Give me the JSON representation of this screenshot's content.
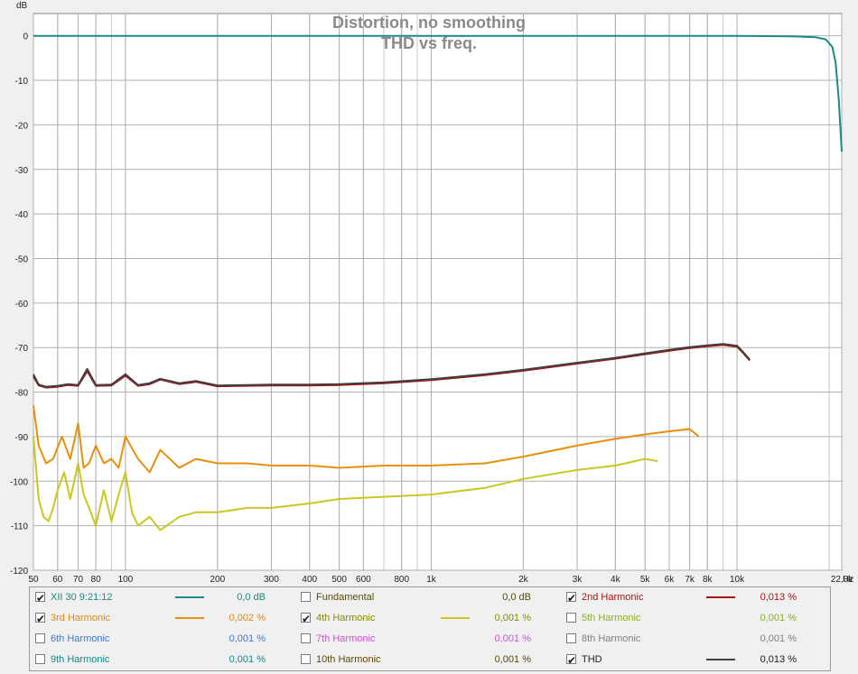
{
  "chart_data": {
    "type": "line",
    "title": "Distortion, no smoothing",
    "subtitle": "THD vs freq.",
    "ylabel": "dB",
    "xlabel": "",
    "x_unit": "Hz",
    "x_scale": "log",
    "xlim": [
      50,
      22000
    ],
    "ylim": [
      -120,
      5
    ],
    "grid": true,
    "x_ticks": [
      50,
      60,
      70,
      80,
      100,
      200,
      300,
      400,
      500,
      600,
      800,
      1000,
      2000,
      3000,
      4000,
      5000,
      6000,
      7000,
      8000,
      10000,
      22000
    ],
    "x_tick_labels": [
      "50",
      "60",
      "70",
      "80",
      "100",
      "200",
      "300",
      "400",
      "500",
      "600",
      "800",
      "1k",
      "2k",
      "3k",
      "4k",
      "5k",
      "6k",
      "7k",
      "8k",
      "10k",
      "22,0k"
    ],
    "y_ticks": [
      0,
      -10,
      -20,
      -30,
      -40,
      -50,
      -60,
      -70,
      -80,
      -90,
      -100,
      -110,
      -120
    ],
    "y_tick_labels": [
      "0",
      "-10",
      "-20",
      "-30",
      "-40",
      "-50",
      "-60",
      "-70",
      "-80",
      "-90",
      "-100",
      "-110",
      "-120"
    ],
    "series": [
      {
        "name": "XII 30 9:21:12",
        "color": "#1a8a8a",
        "x": [
          50,
          100,
          500,
          1000,
          5000,
          10000,
          15000,
          18000,
          19500,
          20500,
          21000,
          21500,
          22000
        ],
        "y": [
          0,
          0,
          0,
          0,
          0,
          0,
          -0.1,
          -0.3,
          -0.8,
          -2.5,
          -6,
          -14,
          -26
        ]
      },
      {
        "name": "2nd Harmonic",
        "color": "#b01010",
        "x": [
          50,
          52,
          55,
          60,
          65,
          70,
          75,
          80,
          90,
          100,
          110,
          120,
          130,
          150,
          170,
          200,
          250,
          300,
          400,
          500,
          700,
          1000,
          1500,
          2000,
          3000,
          4000,
          5000,
          6000,
          7000,
          8000,
          9000,
          10000,
          10500,
          11000
        ],
        "y": [
          -76.5,
          -78.5,
          -79,
          -78.8,
          -78.4,
          -78.6,
          -75.3,
          -78.6,
          -78.5,
          -76.3,
          -78.6,
          -78.2,
          -77.2,
          -78.2,
          -77.7,
          -78.7,
          -78.6,
          -78.5,
          -78.5,
          -78.4,
          -78,
          -77.3,
          -76.2,
          -75.2,
          -73.6,
          -72.5,
          -71.5,
          -70.7,
          -70.1,
          -69.7,
          -69.4,
          -69.8,
          -71.3,
          -72.9
        ]
      },
      {
        "name": "3rd Harmonic",
        "color": "#e8900a",
        "x": [
          50,
          52,
          55,
          58,
          62,
          66,
          70,
          73,
          76,
          80,
          85,
          90,
          95,
          100,
          110,
          120,
          130,
          150,
          170,
          200,
          250,
          300,
          400,
          500,
          700,
          1000,
          1500,
          2000,
          3000,
          4000,
          5000,
          6000,
          7000,
          7500
        ],
        "y": [
          -83,
          -92,
          -96,
          -95,
          -90,
          -95,
          -87,
          -97,
          -96,
          -92,
          -96,
          -95,
          -97,
          -90,
          -95,
          -98,
          -93,
          -97,
          -95,
          -96,
          -96,
          -96.5,
          -96.5,
          -97,
          -96.5,
          -96.5,
          -96,
          -94.5,
          -92,
          -90.5,
          -89.5,
          -88.8,
          -88.3,
          -90
        ]
      },
      {
        "name": "4th Harmonic",
        "color": "#c8c820",
        "x": [
          50,
          52,
          54,
          56,
          58,
          60,
          63,
          66,
          70,
          73,
          76,
          80,
          85,
          90,
          95,
          100,
          105,
          110,
          120,
          130,
          150,
          170,
          200,
          250,
          300,
          400,
          500,
          700,
          1000,
          1500,
          2000,
          3000,
          4000,
          5000,
          5500
        ],
        "y": [
          -90,
          -104,
          -108,
          -109,
          -106,
          -102,
          -98,
          -104,
          -96,
          -103,
          -106,
          -110,
          -102,
          -109,
          -103,
          -98,
          -107,
          -110,
          -108,
          -111,
          -108,
          -107,
          -107,
          -106,
          -106,
          -105,
          -104,
          -103.5,
          -103,
          -101.5,
          -99.5,
          -97.5,
          -96.5,
          -95,
          -95.5
        ]
      },
      {
        "name": "THD",
        "color": "#404040",
        "x": [
          50,
          52,
          55,
          60,
          65,
          70,
          75,
          80,
          90,
          100,
          110,
          120,
          130,
          150,
          170,
          200,
          250,
          300,
          400,
          500,
          700,
          1000,
          1500,
          2000,
          3000,
          4000,
          5000,
          6000,
          7000,
          8000,
          9000,
          10000,
          10500,
          11000
        ],
        "y": [
          -76,
          -78.3,
          -78.8,
          -78.6,
          -78.2,
          -78.4,
          -74.8,
          -78.4,
          -78.3,
          -76,
          -78.4,
          -78,
          -77,
          -78,
          -77.5,
          -78.5,
          -78.4,
          -78.3,
          -78.3,
          -78.2,
          -77.8,
          -77.1,
          -76,
          -75,
          -73.4,
          -72.3,
          -71.3,
          -70.5,
          -69.9,
          -69.5,
          -69.2,
          -69.6,
          -71.1,
          -72.7
        ]
      }
    ]
  },
  "legend": {
    "rows": [
      [
        {
          "label": "XII 30 9:21:12",
          "checked": true,
          "value": "0,0 dB",
          "color": "#1a8a8a",
          "label_color": "#1a8a8a",
          "value_color": "#1a8a8a",
          "swatch": true
        },
        {
          "label": "Fundamental",
          "checked": false,
          "value": "0,0 dB",
          "color": "#6a5a00",
          "label_color": "#5a4a00",
          "value_color": "#5a4a00",
          "swatch": false
        },
        {
          "label": "2nd Harmonic",
          "checked": true,
          "value": "0,013 %",
          "color": "#b01010",
          "label_color": "#b01010",
          "value_color": "#b01010",
          "swatch": true
        }
      ],
      [
        {
          "label": "3rd Harmonic",
          "checked": true,
          "value": "0,002 %",
          "color": "#e8900a",
          "label_color": "#e08a10",
          "value_color": "#e08a10",
          "swatch": true
        },
        {
          "label": "4th Harmonic",
          "checked": true,
          "value": "0,001 %",
          "color": "#c8c820",
          "label_color": "#8a8a00",
          "value_color": "#8a8a00",
          "swatch": true
        },
        {
          "label": "5th Harmonic",
          "checked": false,
          "value": "0,001 %",
          "color": "#8ab020",
          "label_color": "#8ab020",
          "value_color": "#8ab020",
          "swatch": false
        }
      ],
      [
        {
          "label": "6th Harmonic",
          "checked": false,
          "value": "0,001 %",
          "color": "#3a7ad0",
          "label_color": "#3a7ad0",
          "value_color": "#3a7ad0",
          "swatch": false
        },
        {
          "label": "7th Harmonic",
          "checked": false,
          "value": "0,001 %",
          "color": "#d050d0",
          "label_color": "#d050d0",
          "value_color": "#d050d0",
          "swatch": false
        },
        {
          "label": "8th Harmonic",
          "checked": false,
          "value": "0,001 %",
          "color": "#909090",
          "label_color": "#808080",
          "value_color": "#808080",
          "swatch": false
        }
      ],
      [
        {
          "label": "9th Harmonic",
          "checked": false,
          "value": "0,001 %",
          "color": "#109090",
          "label_color": "#108888",
          "value_color": "#108888",
          "swatch": false
        },
        {
          "label": "10th Harmonic",
          "checked": false,
          "value": "0,001 %",
          "color": "#6a5a00",
          "label_color": "#5a4a00",
          "value_color": "#5a4a00",
          "swatch": false
        },
        {
          "label": "THD",
          "checked": true,
          "value": "0,013 %",
          "color": "#404040",
          "label_color": "#202020",
          "value_color": "#202020",
          "swatch": true
        }
      ]
    ]
  }
}
